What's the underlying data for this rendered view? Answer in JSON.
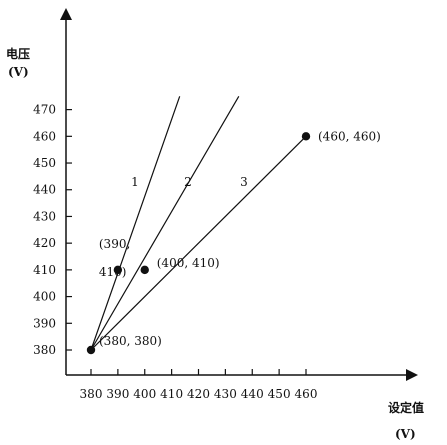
{
  "chart_data": {
    "type": "line",
    "title": "",
    "ylabel": "电压",
    "ylabel_unit": "(V)",
    "xlabel": "设定值",
    "xlabel_unit": "(V)",
    "xlim": [
      380,
      460
    ],
    "ylim": [
      380,
      470
    ],
    "xticks": [
      380,
      390,
      400,
      410,
      420,
      430,
      440,
      450,
      460
    ],
    "yticks": [
      380,
      390,
      400,
      410,
      420,
      430,
      440,
      450,
      460,
      470
    ],
    "grid": false,
    "series": [
      {
        "name": "1",
        "x": [
          380,
          413
        ],
        "y": [
          380,
          475
        ],
        "marker_points": [
          [
            390,
            410
          ]
        ]
      },
      {
        "name": "2",
        "x": [
          380,
          435
        ],
        "y": [
          380,
          475
        ],
        "marker_points": [
          [
            400,
            410
          ]
        ]
      },
      {
        "name": "3",
        "x": [
          380,
          460
        ],
        "y": [
          380,
          460
        ],
        "marker_points": [
          [
            460,
            460
          ]
        ]
      }
    ],
    "points": [
      {
        "x": 380,
        "y": 380,
        "label": "(380, 380)"
      },
      {
        "x": 390,
        "y": 410,
        "label_lines": [
          "(390,",
          "410)"
        ]
      },
      {
        "x": 400,
        "y": 410,
        "label": "(400, 410)"
      },
      {
        "x": 460,
        "y": 460,
        "label": "(460, 460)"
      }
    ],
    "line_labels": [
      "1",
      "2",
      "3"
    ]
  }
}
